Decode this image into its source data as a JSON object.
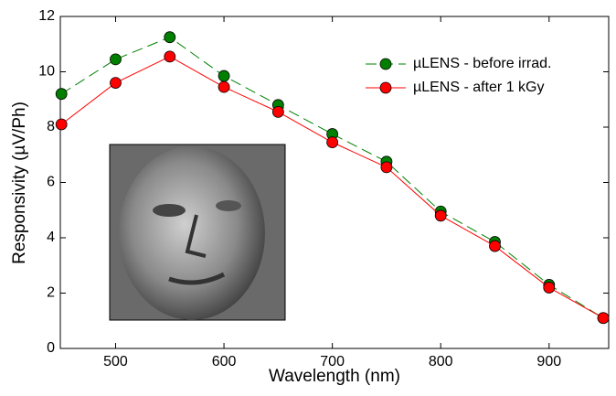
{
  "chart_data": {
    "type": "line",
    "x_label": "Wavelength (nm)",
    "y_label": "Responsivity (µV/Ph)",
    "x": [
      450,
      500,
      550,
      600,
      650,
      700,
      750,
      800,
      850,
      900,
      950
    ],
    "series": [
      {
        "name": "µLENS - before irrad.",
        "color": "#007f00",
        "dashed": true,
        "values": [
          9.2,
          10.45,
          11.25,
          9.85,
          8.8,
          7.75,
          6.75,
          4.95,
          3.85,
          2.3,
          1.1
        ]
      },
      {
        "name": "µLENS - after 1 kGy",
        "color": "#ff0000",
        "dashed": false,
        "values": [
          8.1,
          9.6,
          10.55,
          9.45,
          8.55,
          7.45,
          6.55,
          4.8,
          3.7,
          2.2,
          1.1
        ]
      }
    ],
    "xlim": [
      449,
      955
    ],
    "ylim": [
      0,
      12
    ],
    "xticks": [
      500,
      600,
      700,
      800,
      900
    ],
    "yticks": [
      0,
      2,
      4,
      6,
      8,
      10,
      12
    ],
    "grid": false,
    "legend": "upper right"
  }
}
